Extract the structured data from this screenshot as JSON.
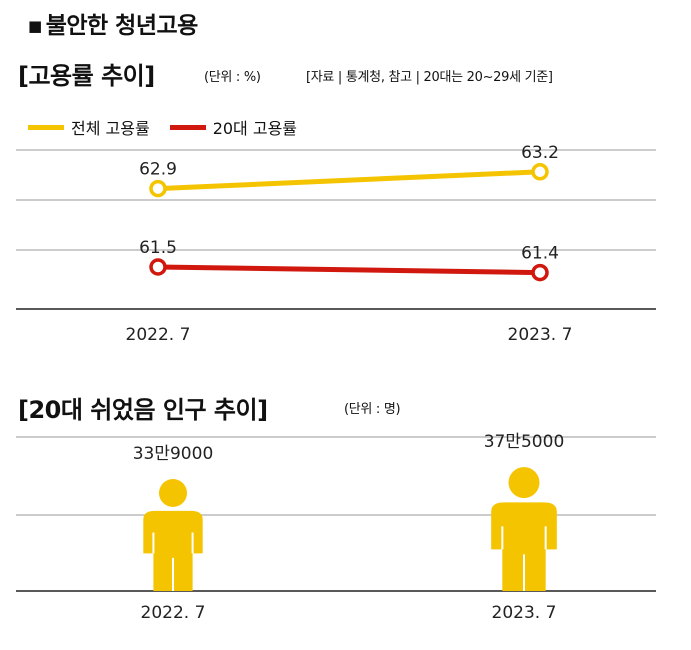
{
  "header": {
    "title": "불안한 청년고용"
  },
  "colors": {
    "total": "#f5c400",
    "twenties": "#d0180f",
    "person": "#f5c400",
    "grid": "#999999",
    "axis": "#222222"
  },
  "chart1": {
    "title": "[고용률 추이]",
    "unit": "(단위 : %)",
    "source": "[자료 | 통계청, 참고 | 20대는 20~29세 기준]"
  },
  "chart2": {
    "title": "[20대 쉬었음 인구 추이]",
    "unit": "(단위 : 명)"
  },
  "chart_data": [
    {
      "type": "line",
      "x": [
        "2022. 7",
        "2023. 7"
      ],
      "series": [
        {
          "name": "전체 고용률",
          "values": [
            62.9,
            63.2
          ],
          "labels": [
            "62.9",
            "63.2"
          ],
          "color": "#f5c400"
        },
        {
          "name": "20대 고용률",
          "values": [
            61.5,
            61.4
          ],
          "labels": [
            "61.5",
            "61.4"
          ],
          "color": "#d0180f"
        }
      ]
    },
    {
      "type": "bar",
      "categories": [
        "2022. 7",
        "2023. 7"
      ],
      "values": [
        339000,
        375000
      ],
      "labels": [
        "33만9000",
        "37만5000"
      ],
      "color": "#f5c400"
    }
  ]
}
